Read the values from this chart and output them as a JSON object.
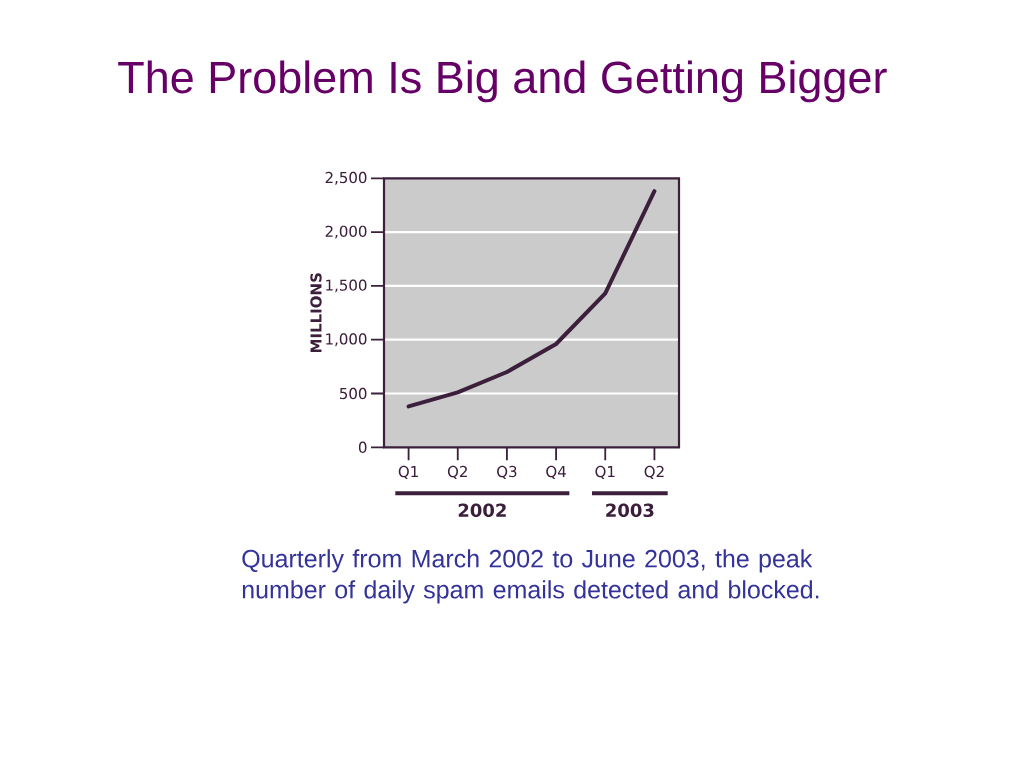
{
  "chart_data": {
    "type": "line",
    "title": "The Problem Is Big and Getting Bigger",
    "ylabel": "MILLIONS",
    "categories": [
      "Q1",
      "Q2",
      "Q3",
      "Q4",
      "Q1",
      "Q2"
    ],
    "series": [
      {
        "color": "#3b1f3b",
        "values": [
          380,
          510,
          700,
          960,
          1430,
          2380
        ]
      }
    ],
    "ylim": [
      0,
      2500
    ],
    "yticks": [
      0,
      500,
      {
        "value": 1000,
        "label": "1,000"
      },
      {
        "value": 1500,
        "label": "1,500"
      },
      {
        "value": 2000,
        "label": "2,000"
      },
      {
        "value": 2500,
        "label": "2,500"
      }
    ],
    "grid": "y",
    "marker": "none",
    "line_style": "solid",
    "annotations": [
      "2002",
      "2003",
      "Quarterly from March 2002 to June 2003, the peak number of daily spam emails detected and blocked."
    ]
  }
}
